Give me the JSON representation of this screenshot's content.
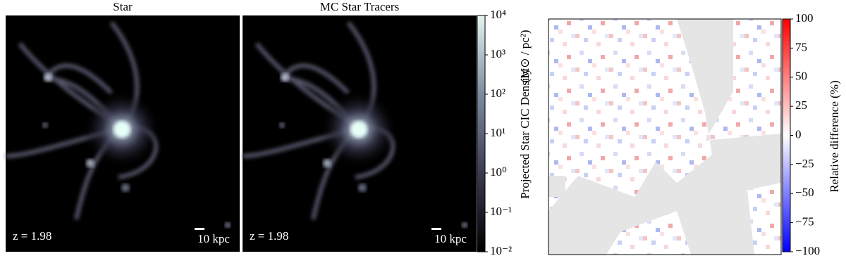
{
  "panels": [
    {
      "title": "Star",
      "redshift_label": "z = 1.98",
      "scale_label": "10 kpc"
    },
    {
      "title": "MC Star Tracers",
      "redshift_label": "z = 1.98",
      "scale_label": "10 kpc"
    }
  ],
  "density_colorbar": {
    "label": "Projected Star CIC Density",
    "unit_label": "(M⊙ / pc²)",
    "log_scale": true,
    "colors": [
      "#000000",
      "#3a3a52",
      "#7d8aa0",
      "#e6f4f2"
    ],
    "lim": [
      0.01,
      10000
    ],
    "ticks": [
      {
        "value": 0.01,
        "label": "10⁻²"
      },
      {
        "value": 0.1,
        "label": "10⁻¹"
      },
      {
        "value": 1,
        "label": "10⁰"
      },
      {
        "value": 10,
        "label": "10¹"
      },
      {
        "value": 100,
        "label": "10²"
      },
      {
        "value": 1000,
        "label": "10³"
      },
      {
        "value": 10000,
        "label": "10⁴"
      }
    ]
  },
  "difference_colorbar": {
    "label": "Relative difference (%)",
    "colors": [
      "#0000ff",
      "#ffffff",
      "#ff0000"
    ],
    "lim": [
      -100,
      100
    ],
    "ticks": [
      100,
      75,
      50,
      25,
      0,
      {
        "value": -25,
        "label": "−25"
      },
      {
        "value": -50,
        "label": "−50"
      },
      {
        "value": -75,
        "label": "−75"
      },
      {
        "value": -100,
        "label": "−100"
      }
    ]
  }
}
